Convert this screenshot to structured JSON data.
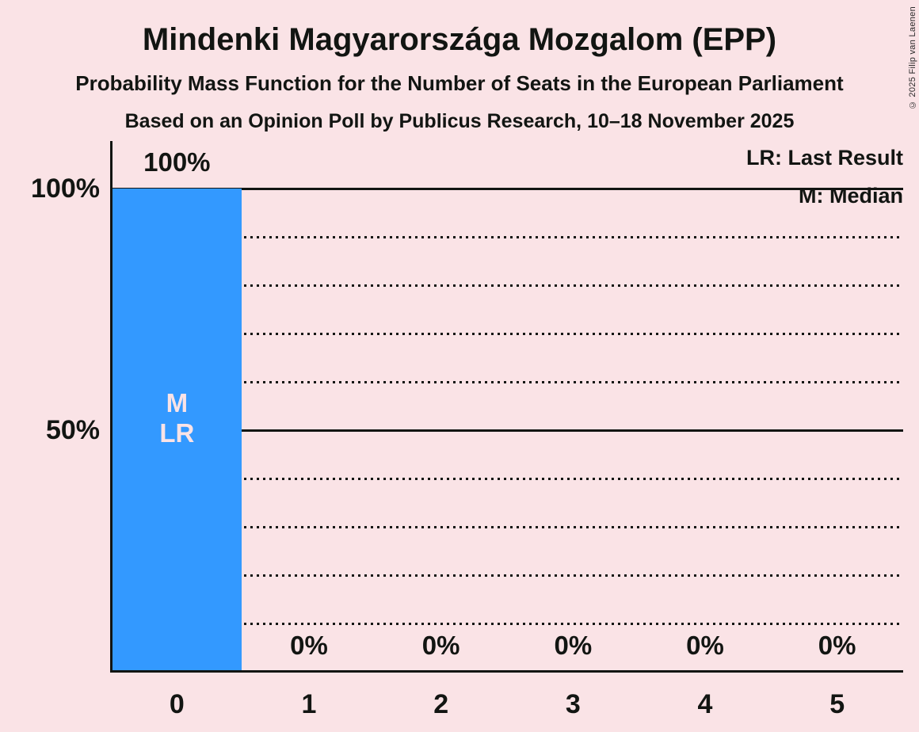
{
  "title": "Mindenki Magyarországa Mozgalom (EPP)",
  "subtitle": "Probability Mass Function for the Number of Seats in the European Parliament",
  "poll_info": "Based on an Opinion Poll by Publicus Research, 10–18 November 2025",
  "copyright": "© 2025 Filip van Laenen",
  "legend": {
    "last_result": "LR: Last Result",
    "median": "M: Median"
  },
  "colors": {
    "background": "#fae3e6",
    "bar": "#3399ff",
    "ink": "#121512",
    "bar_text": "#fae3e6"
  },
  "chart_data": {
    "type": "bar",
    "title": "Mindenki Magyarországa Mozgalom (EPP)",
    "xlabel": "",
    "ylabel": "",
    "categories": [
      "0",
      "1",
      "2",
      "3",
      "4",
      "5"
    ],
    "values": [
      100,
      0,
      0,
      0,
      0,
      0
    ],
    "value_labels": [
      "100%",
      "0%",
      "0%",
      "0%",
      "0%",
      "0%"
    ],
    "ylim": [
      0,
      100
    ],
    "yticks": [
      {
        "value": 100,
        "label": "100%"
      },
      {
        "value": 50,
        "label": "50%"
      }
    ],
    "gridlines": {
      "solid": [
        100,
        50
      ],
      "dotted": [
        90,
        80,
        70,
        60,
        40,
        30,
        20,
        10
      ]
    },
    "annotations": [
      {
        "category": 0,
        "lines": [
          "M",
          "LR"
        ]
      }
    ],
    "legend_position": "top-right",
    "grid": true,
    "median_seats": 0,
    "last_result_seats": 0
  }
}
